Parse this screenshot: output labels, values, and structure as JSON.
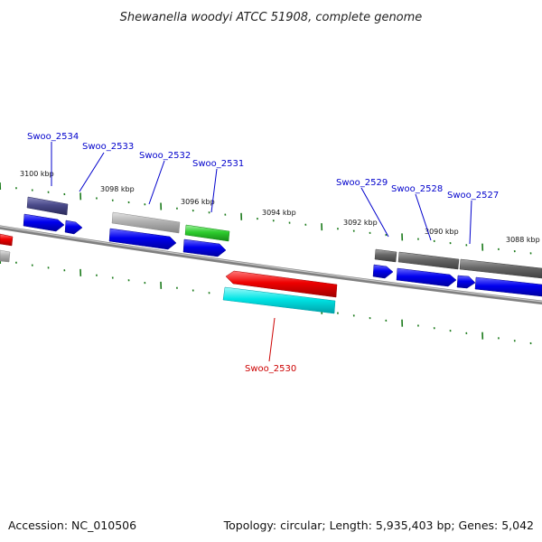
{
  "title": "Shewanella woodyi ATCC 51908, complete genome",
  "footer": {
    "accession": "Accession: NC_010506",
    "summary": "Topology: circular; Length: 5,935,403 bp; Genes: 5,042"
  },
  "scale_labels": [
    "3100 kbp",
    "3098 kbp",
    "3096 kbp",
    "3094 kbp",
    "3092 kbp",
    "3090 kbp",
    "3088 kbp"
  ],
  "gene_labels": [
    {
      "text": "Swoo_2534",
      "color": "#0000cc"
    },
    {
      "text": "Swoo_2533",
      "color": "#0000cc"
    },
    {
      "text": "Swoo_2532",
      "color": "#0000cc"
    },
    {
      "text": "Swoo_2531",
      "color": "#0000cc"
    },
    {
      "text": "Swoo_2529",
      "color": "#0000cc"
    },
    {
      "text": "Swoo_2528",
      "color": "#0000cc"
    },
    {
      "text": "Swoo_2527",
      "color": "#0000cc"
    },
    {
      "text": "Swoo_2530",
      "color": "#cc0000"
    }
  ],
  "colors": {
    "backbone": "#7a7a7a",
    "tick": "#1a7a1a",
    "cds_forward": "#0000ee",
    "cds_reverse": "#ee0000",
    "gene_cyan": "#00e5e5",
    "gene_green": "#2ecc2e",
    "gene_purple": "#4a4a8a",
    "gene_gray": "#b0b0b0",
    "gene_darkgray": "#666666"
  }
}
